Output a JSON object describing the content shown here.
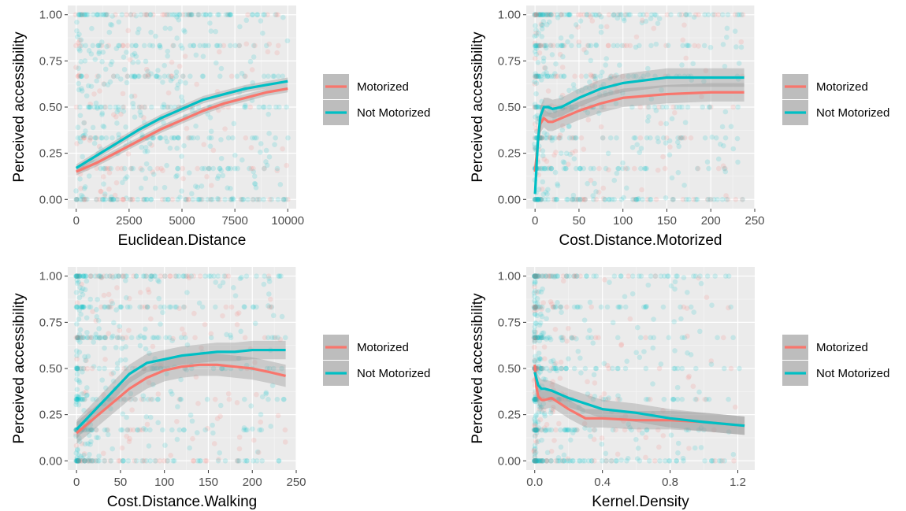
{
  "colors": {
    "motorized": "#F8766D",
    "not_motorized": "#00BFC4",
    "panel_bg": "#EBEBEB",
    "ribbon": "#999999"
  },
  "legend": {
    "entries": [
      "Motorized",
      "Not Motorized"
    ]
  },
  "chart_data": [
    {
      "type": "scatter",
      "xlabel": "Euclidean.Distance",
      "ylabel": "Perceived accessibility",
      "xlim": [
        -400,
        10400
      ],
      "ylim": [
        -0.05,
        1.05
      ],
      "xticks": [
        0,
        2500,
        5000,
        7500,
        10000
      ],
      "xtick_labels": [
        "0",
        "2500",
        "5000",
        "7500",
        "10000"
      ],
      "yticks": [
        0,
        0.25,
        0.5,
        0.75,
        1
      ],
      "ytick_labels": [
        "0.00",
        "0.25",
        "0.50",
        "0.75",
        "1.00"
      ],
      "grid": true,
      "legend": "right",
      "series": [
        {
          "name": "Motorized",
          "x": [
            0,
            1000,
            2000,
            3000,
            4000,
            5000,
            6000,
            7000,
            8000,
            9000,
            10000
          ],
          "y": [
            0.15,
            0.2,
            0.26,
            0.32,
            0.38,
            0.43,
            0.48,
            0.52,
            0.55,
            0.58,
            0.6
          ],
          "ribbon": 0.02
        },
        {
          "name": "Not Motorized",
          "x": [
            0,
            1000,
            2000,
            3000,
            4000,
            5000,
            6000,
            7000,
            8000,
            9000,
            10000
          ],
          "y": [
            0.17,
            0.24,
            0.31,
            0.38,
            0.44,
            0.49,
            0.54,
            0.57,
            0.6,
            0.62,
            0.64
          ],
          "ribbon": 0.02
        }
      ]
    },
    {
      "type": "scatter",
      "xlabel": "Cost.Distance.Motorized",
      "ylabel": "Perceived accessibility",
      "xlim": [
        -10,
        250
      ],
      "ylim": [
        -0.05,
        1.05
      ],
      "xticks": [
        0,
        50,
        100,
        150,
        200,
        250
      ],
      "xtick_labels": [
        "0",
        "50",
        "100",
        "150",
        "200",
        "250"
      ],
      "yticks": [
        0,
        0.25,
        0.5,
        0.75,
        1
      ],
      "ytick_labels": [
        "0.00",
        "0.25",
        "0.50",
        "0.75",
        "1.00"
      ],
      "grid": true,
      "legend": "right",
      "series": [
        {
          "name": "Motorized",
          "x": [
            0,
            3,
            6,
            10,
            15,
            20,
            30,
            50,
            75,
            100,
            150,
            200,
            238
          ],
          "y": [
            0.15,
            0.3,
            0.41,
            0.44,
            0.42,
            0.42,
            0.44,
            0.48,
            0.52,
            0.55,
            0.57,
            0.58,
            0.58
          ],
          "ribbon": 0.05
        },
        {
          "name": "Not Motorized",
          "x": [
            0,
            3,
            6,
            10,
            15,
            20,
            30,
            50,
            75,
            100,
            150,
            200,
            238
          ],
          "y": [
            0.03,
            0.3,
            0.45,
            0.5,
            0.5,
            0.49,
            0.5,
            0.55,
            0.6,
            0.63,
            0.66,
            0.66,
            0.66
          ],
          "ribbon": 0.05
        }
      ]
    },
    {
      "type": "scatter",
      "xlabel": "Cost.Distance.Walking",
      "ylabel": "Perceived accessibility",
      "xlim": [
        -10,
        250
      ],
      "ylim": [
        -0.05,
        1.05
      ],
      "xticks": [
        0,
        50,
        100,
        150,
        200,
        250
      ],
      "xtick_labels": [
        "0",
        "50",
        "100",
        "150",
        "200",
        "250"
      ],
      "yticks": [
        0,
        0.25,
        0.5,
        0.75,
        1
      ],
      "ytick_labels": [
        "0.00",
        "0.25",
        "0.50",
        "0.75",
        "1.00"
      ],
      "grid": true,
      "legend": "right",
      "series": [
        {
          "name": "Motorized",
          "x": [
            0,
            20,
            40,
            60,
            80,
            100,
            120,
            140,
            160,
            180,
            200,
            220,
            238
          ],
          "y": [
            0.15,
            0.23,
            0.31,
            0.39,
            0.45,
            0.49,
            0.51,
            0.52,
            0.52,
            0.51,
            0.5,
            0.48,
            0.46
          ],
          "ribbon": 0.06
        },
        {
          "name": "Not Motorized",
          "x": [
            0,
            20,
            40,
            60,
            80,
            100,
            120,
            140,
            160,
            180,
            200,
            220,
            238
          ],
          "y": [
            0.17,
            0.27,
            0.37,
            0.47,
            0.53,
            0.55,
            0.57,
            0.58,
            0.59,
            0.59,
            0.6,
            0.6,
            0.6
          ],
          "ribbon": 0.05
        }
      ]
    },
    {
      "type": "scatter",
      "xlabel": "Kernel.Density",
      "ylabel": "Perceived accessibility",
      "xlim": [
        -0.05,
        1.3
      ],
      "ylim": [
        -0.05,
        1.05
      ],
      "xticks": [
        0,
        0.4,
        0.8,
        1.2
      ],
      "xtick_labels": [
        "0.0",
        "0.4",
        "0.8",
        "1.2"
      ],
      "yticks": [
        0,
        0.25,
        0.5,
        0.75,
        1
      ],
      "ytick_labels": [
        "0.00",
        "0.25",
        "0.50",
        "0.75",
        "1.00"
      ],
      "grid": true,
      "legend": "right",
      "series": [
        {
          "name": "Motorized",
          "x": [
            0,
            0.01,
            0.02,
            0.04,
            0.06,
            0.1,
            0.15,
            0.2,
            0.3,
            0.4,
            0.6,
            0.8,
            1.0,
            1.24
          ],
          "y": [
            0.52,
            0.4,
            0.35,
            0.33,
            0.33,
            0.34,
            0.31,
            0.28,
            0.23,
            0.23,
            0.22,
            0.22,
            0.21,
            0.19
          ],
          "ribbon": 0.05
        },
        {
          "name": "Not Motorized",
          "x": [
            0,
            0.02,
            0.04,
            0.06,
            0.1,
            0.15,
            0.2,
            0.3,
            0.4,
            0.6,
            0.8,
            1.0,
            1.24
          ],
          "y": [
            0.48,
            0.41,
            0.39,
            0.39,
            0.38,
            0.36,
            0.34,
            0.31,
            0.28,
            0.26,
            0.23,
            0.21,
            0.19
          ],
          "ribbon": 0.05
        }
      ]
    }
  ]
}
